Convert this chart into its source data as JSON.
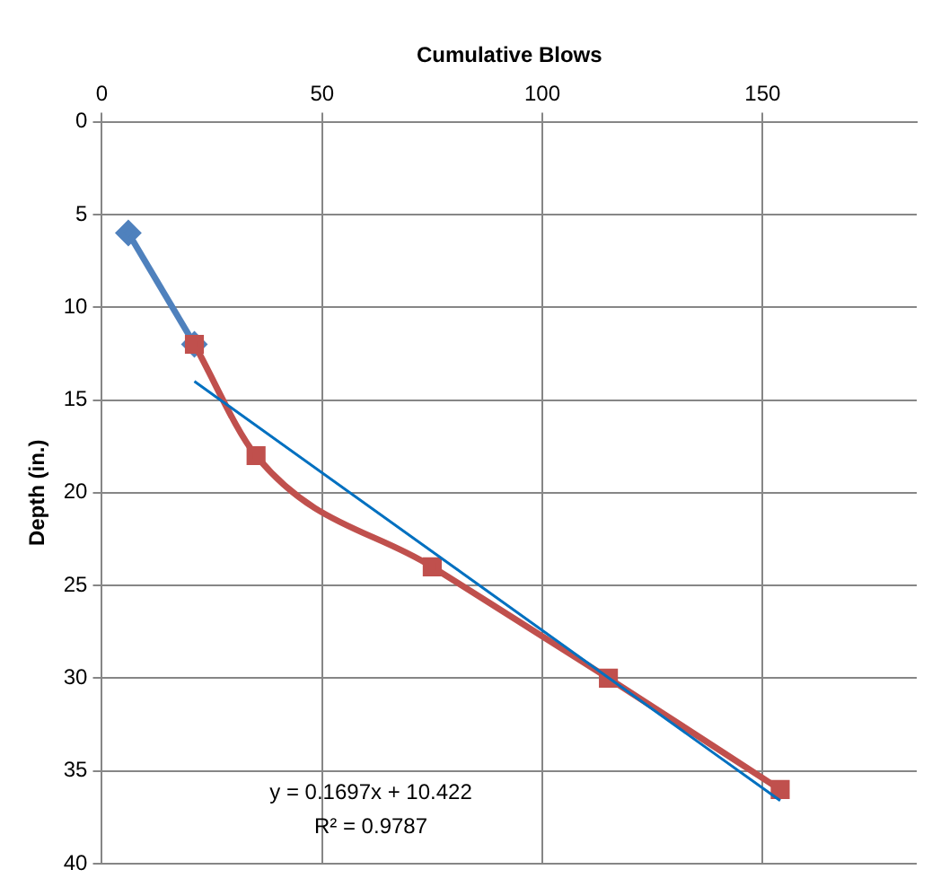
{
  "chart_data": {
    "type": "line",
    "xlabel": "Cumulative Blows",
    "ylabel": "Depth (in.)",
    "xlim": [
      0,
      185
    ],
    "xticks": [
      0,
      50,
      100,
      150
    ],
    "ylim": [
      40,
      0
    ],
    "yticks": [
      0,
      5,
      10,
      15,
      20,
      25,
      30,
      35,
      40
    ],
    "grid": true,
    "legend": false,
    "series": [
      {
        "color": "#4f81bd",
        "marker": "diamond",
        "x": [
          6,
          21
        ],
        "values": [
          6,
          12
        ]
      },
      {
        "color": "#c0504d",
        "marker": "square",
        "x": [
          21,
          35,
          75,
          115,
          154
        ],
        "values": [
          12,
          18,
          24,
          30,
          36
        ]
      },
      {
        "color": "#0070c0",
        "marker": "none",
        "x": [
          21,
          154
        ],
        "values": [
          14,
          36.6
        ]
      }
    ],
    "annotations": [
      "y = 0.1697x + 10.422",
      "R² = 0.9787"
    ]
  }
}
